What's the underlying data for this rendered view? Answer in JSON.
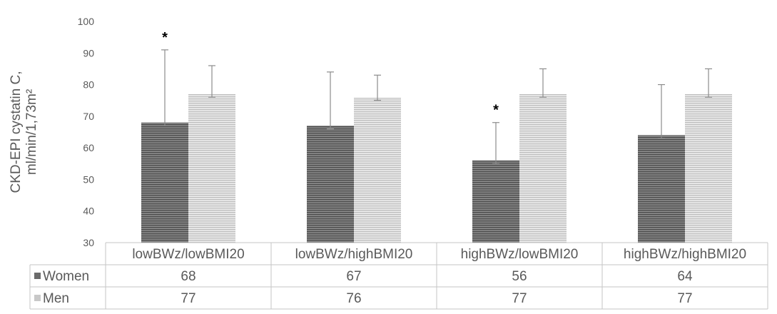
{
  "chart_data": {
    "type": "bar",
    "title": "",
    "ylabel_lines": [
      "CKD-EPI cystatin C,",
      "ml/min/1,73m²"
    ],
    "xlabel": "",
    "ylim": [
      30,
      100
    ],
    "yticks": [
      30,
      40,
      50,
      60,
      70,
      80,
      90,
      100
    ],
    "categories": [
      "lowBWz/lowBMI20",
      "lowBWz/highBMI20",
      "highBWz/lowBMI20",
      "highBWz/highBMI20"
    ],
    "series": [
      {
        "name": "Women",
        "values": [
          68,
          67,
          56,
          64
        ],
        "error_upper": [
          91,
          84,
          68,
          80
        ],
        "error_lower": [
          67,
          66,
          55,
          63
        ],
        "color": "#6b6b6b"
      },
      {
        "name": "Men",
        "values": [
          77,
          76,
          77,
          77
        ],
        "error_upper": [
          86,
          83,
          85,
          85
        ],
        "error_lower": [
          76,
          75,
          76,
          76
        ],
        "color": "#c8c8c8"
      }
    ],
    "significance_marks": [
      {
        "category": "lowBWz/lowBMI20",
        "series": "Women",
        "symbol": "*"
      },
      {
        "category": "highBWz/lowBMI20",
        "series": "Women",
        "symbol": "*"
      }
    ],
    "data_table": true,
    "grid": false,
    "legend": "in data table"
  }
}
